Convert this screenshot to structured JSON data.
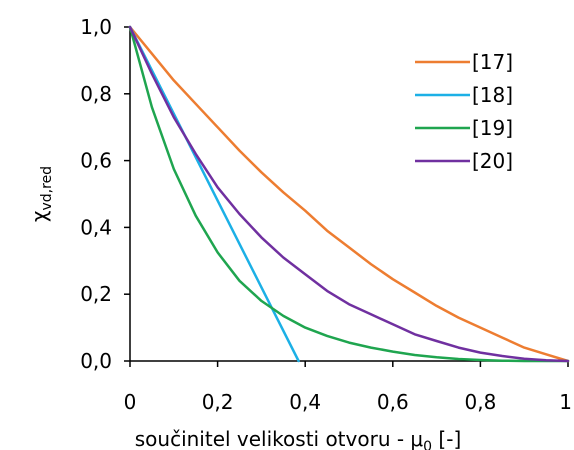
{
  "chart_data": {
    "type": "line",
    "xlabel": "součinitel velikosti otvoru - μ",
    "xlabel_sub": "0",
    "xlabel_suffix": " [-]",
    "ylabel": "χ",
    "ylabel_sub": "vd,red",
    "xlim": [
      0,
      1
    ],
    "ylim": [
      0,
      1
    ],
    "xticks": [
      0,
      0.2,
      0.4,
      0.6,
      0.8,
      1
    ],
    "xtick_labels": [
      "0",
      "0,2",
      "0,4",
      "0,6",
      "0,8",
      "1"
    ],
    "yticks": [
      0,
      0.2,
      0.4,
      0.6,
      0.8,
      1
    ],
    "ytick_labels": [
      "0,0",
      "0,2",
      "0,4",
      "0,6",
      "0,8",
      "1,0"
    ],
    "grid": false,
    "legend_position": "top-right",
    "series": [
      {
        "name": "[17]",
        "color": "#ED7D31",
        "x": [
          0,
          0.05,
          0.1,
          0.15,
          0.2,
          0.25,
          0.3,
          0.35,
          0.4,
          0.45,
          0.5,
          0.55,
          0.6,
          0.65,
          0.7,
          0.75,
          0.8,
          0.85,
          0.9,
          0.95,
          1
        ],
        "y": [
          1,
          0.92,
          0.84,
          0.77,
          0.7,
          0.63,
          0.565,
          0.505,
          0.45,
          0.39,
          0.34,
          0.29,
          0.245,
          0.205,
          0.165,
          0.13,
          0.1,
          0.07,
          0.04,
          0.02,
          0
        ]
      },
      {
        "name": "[18]",
        "color": "#1CB0E6",
        "x": [
          0,
          0.385
        ],
        "y": [
          1,
          0
        ]
      },
      {
        "name": "[19]",
        "color": "#1FA54F",
        "x": [
          0,
          0.05,
          0.1,
          0.15,
          0.2,
          0.25,
          0.3,
          0.35,
          0.4,
          0.45,
          0.5,
          0.55,
          0.6,
          0.65,
          0.7,
          0.75,
          0.8,
          0.85,
          0.9,
          0.95,
          1
        ],
        "y": [
          1,
          0.76,
          0.575,
          0.435,
          0.325,
          0.24,
          0.18,
          0.135,
          0.1,
          0.075,
          0.055,
          0.04,
          0.028,
          0.018,
          0.011,
          0.006,
          0.003,
          0.001,
          0,
          0,
          0
        ]
      },
      {
        "name": "[20]",
        "color": "#7030A0",
        "x": [
          0,
          0.05,
          0.1,
          0.15,
          0.2,
          0.25,
          0.3,
          0.35,
          0.4,
          0.45,
          0.5,
          0.55,
          0.6,
          0.65,
          0.7,
          0.75,
          0.8,
          0.85,
          0.9,
          0.95,
          1
        ],
        "y": [
          1,
          0.86,
          0.73,
          0.62,
          0.52,
          0.44,
          0.37,
          0.31,
          0.26,
          0.21,
          0.17,
          0.14,
          0.11,
          0.08,
          0.06,
          0.04,
          0.025,
          0.015,
          0.007,
          0.002,
          0
        ]
      }
    ]
  }
}
